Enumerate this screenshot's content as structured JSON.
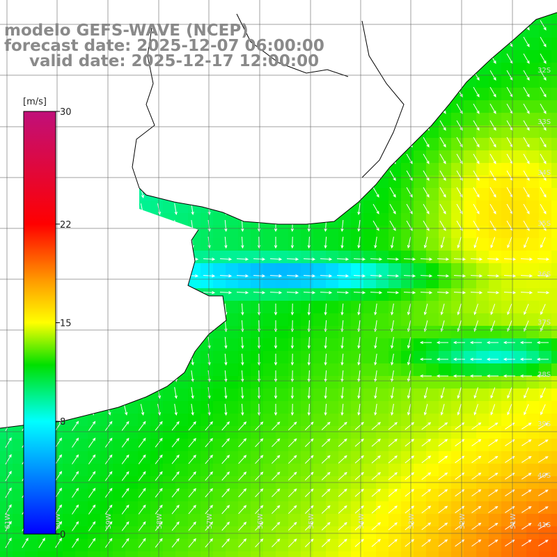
{
  "title": {
    "model": "modelo GEFS-WAVE (NCEP)",
    "forecast": "forecast date: 2025-12-07 06:00:00",
    "valid": "valid date: 2025-12-17 12:00:00"
  },
  "colorbar": {
    "unit": "[m/s]",
    "ticks": [
      {
        "label": "30",
        "value": 30
      },
      {
        "label": "22",
        "value": 22
      },
      {
        "label": "15",
        "value": 15
      },
      {
        "label": "8",
        "value": 8
      },
      {
        "label": "0",
        "value": 0
      }
    ],
    "range": [
      0,
      30
    ],
    "stops": [
      {
        "value": 0,
        "color": "#0000ff"
      },
      {
        "value": 4,
        "color": "#0080ff"
      },
      {
        "value": 8,
        "color": "#00ffff"
      },
      {
        "value": 12,
        "color": "#00e000"
      },
      {
        "value": 15,
        "color": "#ffff00"
      },
      {
        "value": 18,
        "color": "#ff9a00"
      },
      {
        "value": 22,
        "color": "#ff0000"
      },
      {
        "value": 30,
        "color": "#c0107a"
      }
    ]
  },
  "lat_labels": [
    "32S",
    "33S",
    "34S",
    "35S",
    "36S",
    "37S",
    "38S",
    "39S",
    "40S",
    "41S"
  ],
  "lon_labels": [
    "61W",
    "60W",
    "59W",
    "58W",
    "57W",
    "56W",
    "55W",
    "54W",
    "53W",
    "52W",
    "51W"
  ],
  "colors": {
    "land": "#ffffff",
    "coast": "#000000",
    "grid": "#555555",
    "arrow": "#ffffff",
    "title": "#8a8a8a"
  }
}
